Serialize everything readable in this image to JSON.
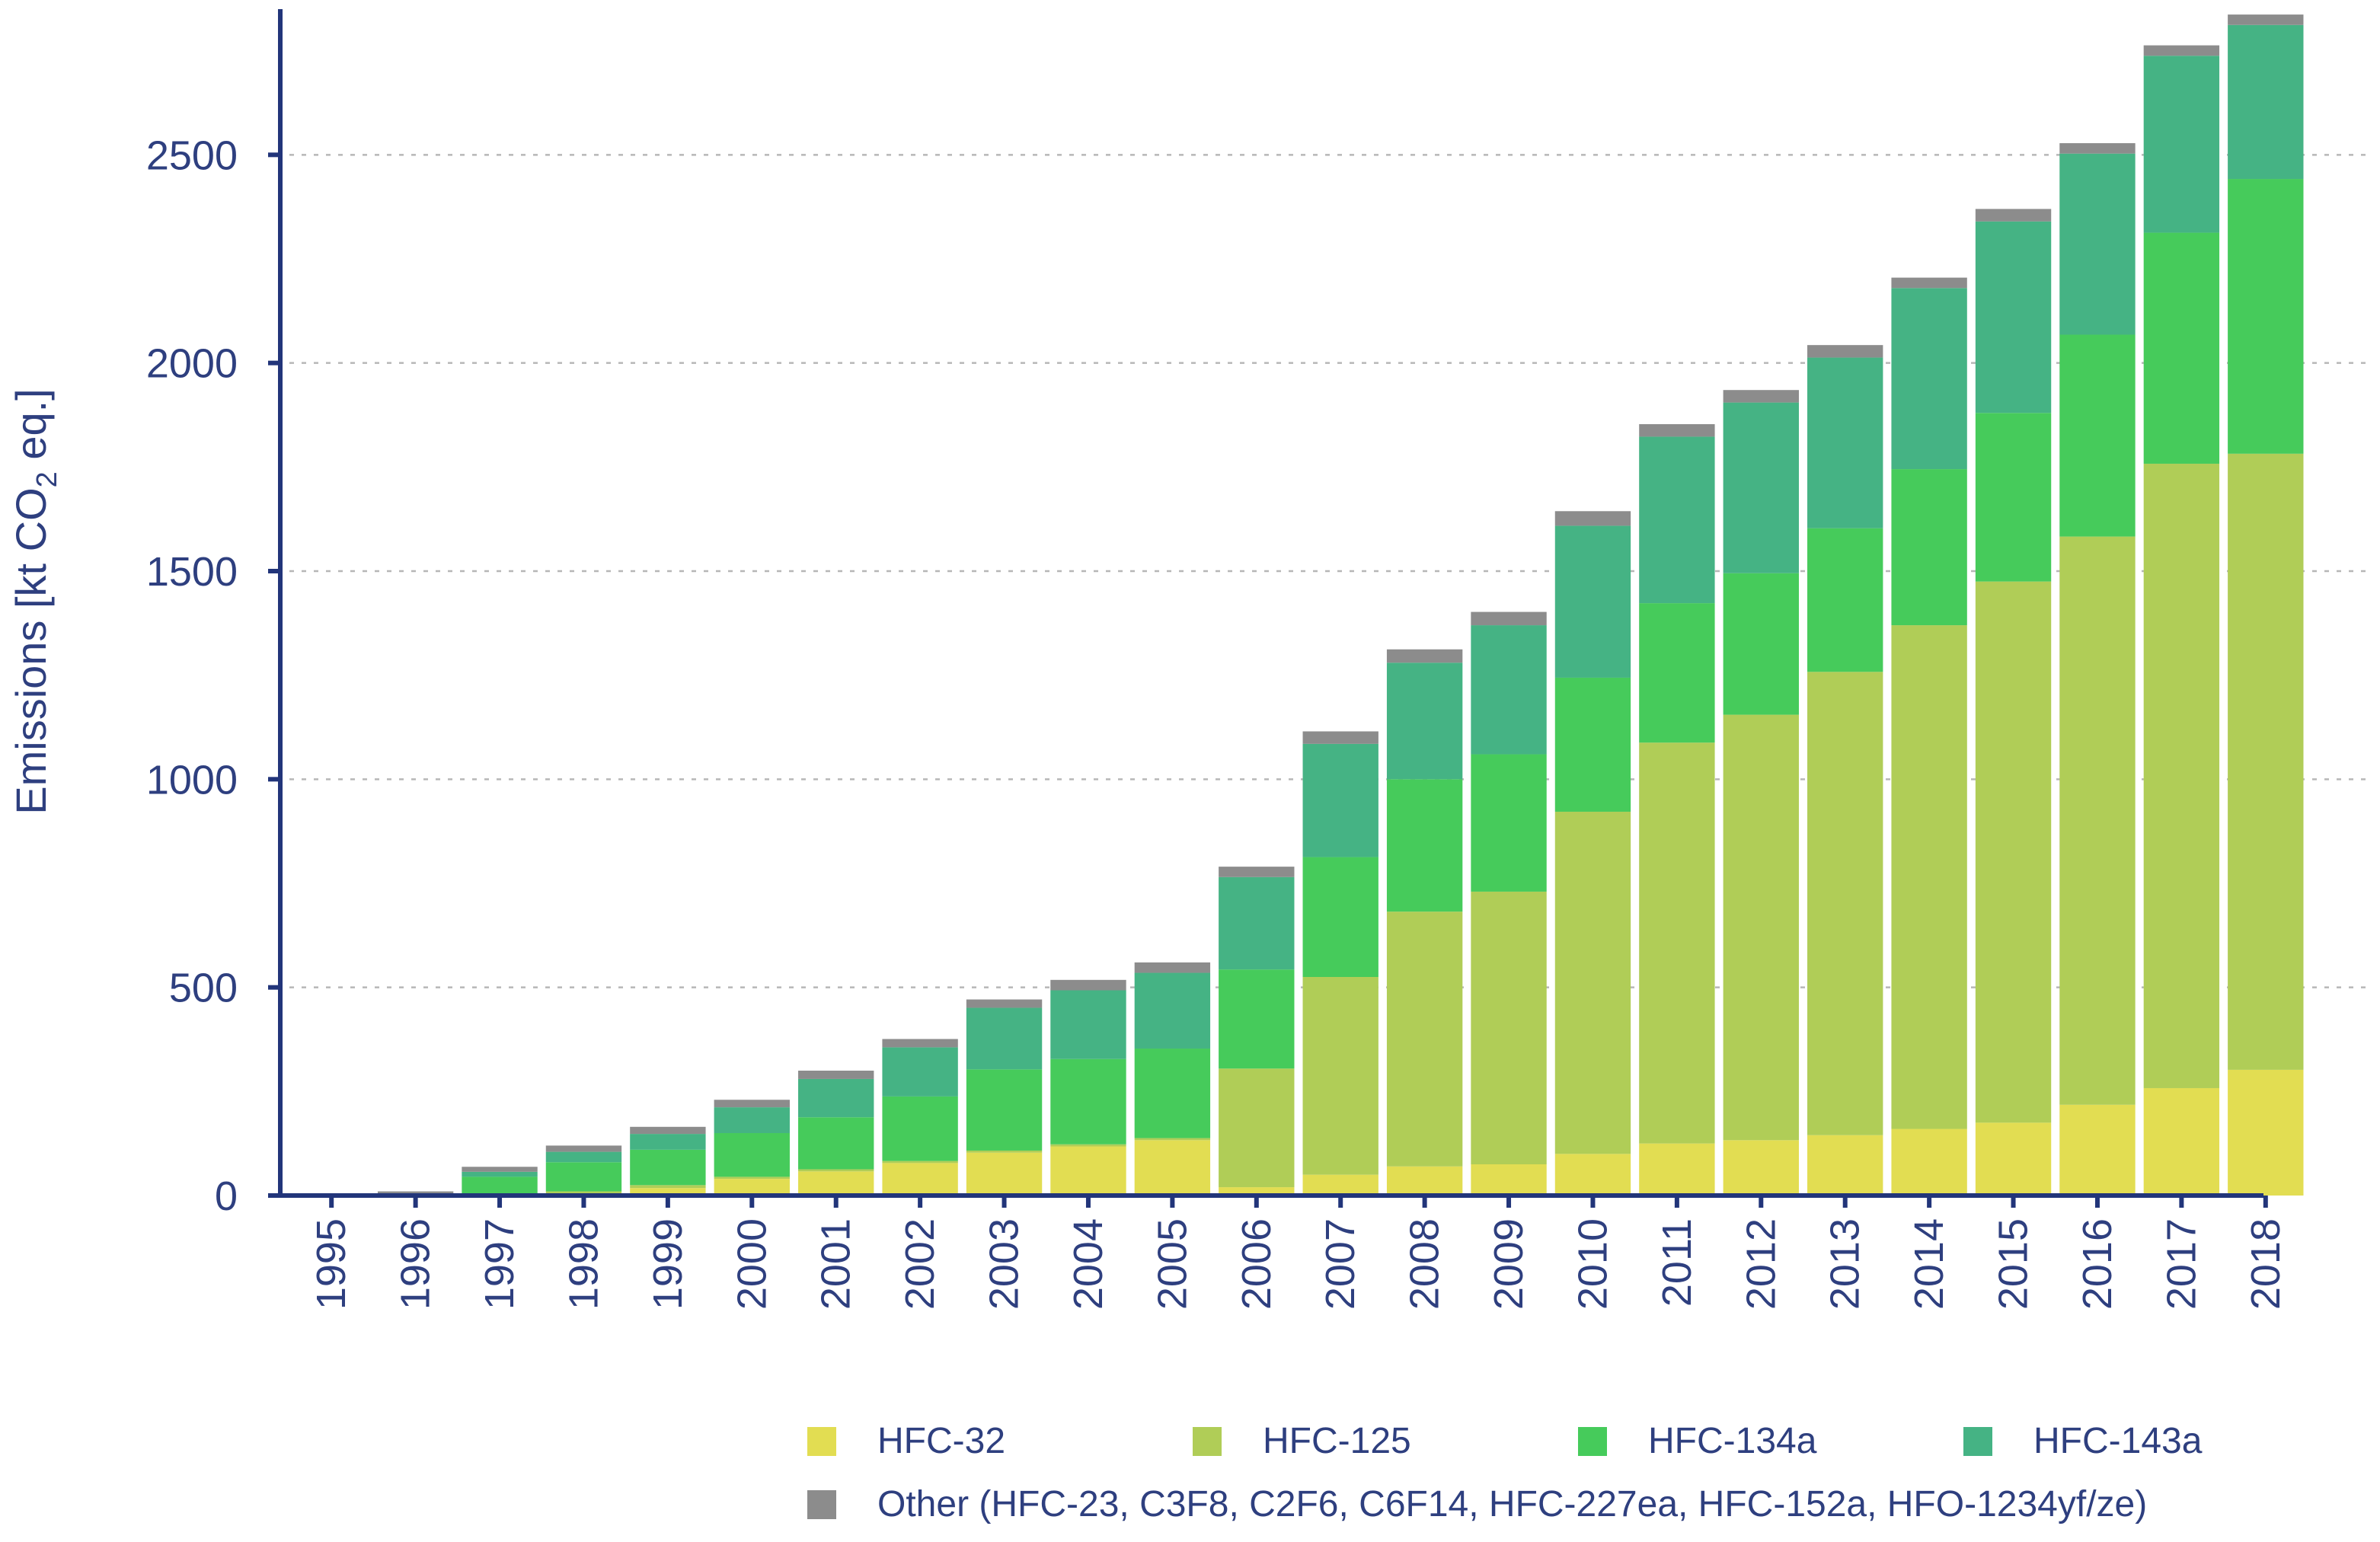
{
  "chart_data": {
    "type": "bar",
    "stacked": true,
    "title": "",
    "xlabel": "",
    "ylabel": "Emissions [kt CO2 eq.]",
    "ylabel_parts": {
      "before": "Emissions [kt CO",
      "subscript": "2",
      "after": " eq.]"
    },
    "ylim": [
      0,
      2850
    ],
    "yticks": [
      0,
      500,
      1000,
      1500,
      2000,
      2500
    ],
    "grid": true,
    "legend_position": "bottom",
    "categories": [
      "1995",
      "1996",
      "1997",
      "1998",
      "1999",
      "2000",
      "2001",
      "2002",
      "2003",
      "2004",
      "2005",
      "2006",
      "2007",
      "2008",
      "2009",
      "2010",
      "2011",
      "2012",
      "2013",
      "2014",
      "2015",
      "2016",
      "2017",
      "2018"
    ],
    "series": [
      {
        "name": "HFC-32",
        "color": "#e2dd52",
        "values": [
          0,
          0,
          0,
          5,
          18,
          40,
          58,
          78,
          103,
          118,
          133,
          20,
          50,
          70,
          75,
          100,
          125,
          133,
          145,
          160,
          175,
          218,
          258,
          302
        ]
      },
      {
        "name": "HFC-125",
        "color": "#b0cd57",
        "values": [
          0,
          0,
          0,
          5,
          7,
          5,
          5,
          5,
          5,
          5,
          5,
          285,
          475,
          612,
          655,
          822,
          963,
          1022,
          1113,
          1210,
          1300,
          1365,
          1500,
          1480
        ]
      },
      {
        "name": "HFC-134a",
        "color": "#46cb5b",
        "values": [
          5,
          5,
          45,
          70,
          85,
          105,
          125,
          155,
          195,
          205,
          215,
          238,
          288,
          318,
          330,
          322,
          335,
          340,
          345,
          375,
          405,
          485,
          555,
          660
        ]
      },
      {
        "name": "HFC-143a",
        "color": "#45b384",
        "values": [
          0,
          0,
          12,
          25,
          38,
          62,
          92,
          118,
          148,
          165,
          182,
          222,
          272,
          280,
          310,
          365,
          400,
          410,
          410,
          435,
          460,
          435,
          425,
          370
        ]
      },
      {
        "name": "Other (HFC-23, C3F8, C2F6, C6F14, HFC-227ea, HFC-152a, HFO-1234yf/ze)",
        "color": "#8c8c8c",
        "values": [
          0,
          5,
          12,
          15,
          17,
          18,
          20,
          20,
          20,
          25,
          25,
          25,
          30,
          32,
          32,
          35,
          30,
          30,
          30,
          25,
          30,
          25,
          25,
          25
        ]
      }
    ]
  }
}
